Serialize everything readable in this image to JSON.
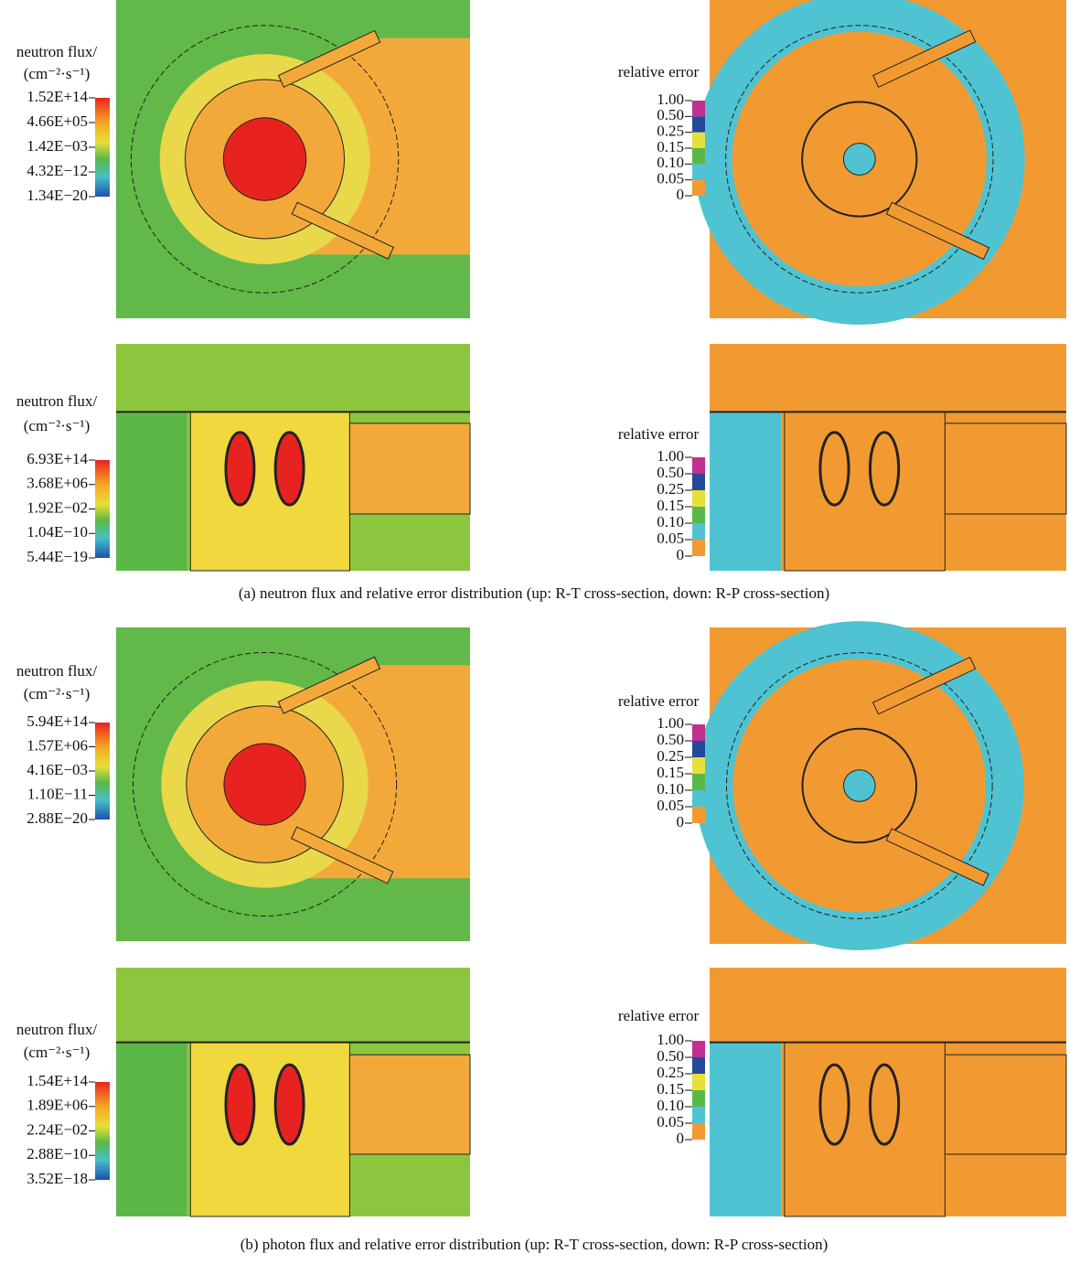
{
  "panels": [
    {
      "title": [
        "neutron flux/",
        "(cm⁻²·s⁻¹)"
      ],
      "labels": [
        "1.52E+14",
        "4.66E+05",
        "1.42E−03",
        "4.32E−12",
        "1.34E−20"
      ]
    },
    {
      "title": [
        "relative error"
      ],
      "labels": [
        "1.00",
        "0.50",
        "0.25",
        "0.15",
        "0.10",
        "0.05",
        "0"
      ]
    },
    {
      "title": [
        "neutron flux/",
        "(cm⁻²·s⁻¹)"
      ],
      "labels": [
        "6.93E+14",
        "3.68E+06",
        "1.92E−02",
        "1.04E−10",
        "5.44E−19"
      ]
    },
    {
      "title": [
        "relative error"
      ],
      "labels": [
        "1.00",
        "0.50",
        "0.25",
        "0.15",
        "0.10",
        "0.05",
        "0"
      ]
    },
    {
      "title": [
        "neutron flux/",
        "(cm⁻²·s⁻¹)"
      ],
      "labels": [
        "5.94E+14",
        "1.57E+06",
        "4.16E−03",
        "1.10E−11",
        "2.88E−20"
      ]
    },
    {
      "title": [
        "relative error"
      ],
      "labels": [
        "1.00",
        "0.50",
        "0.25",
        "0.15",
        "0.10",
        "0.05",
        "0"
      ]
    },
    {
      "title": [
        "neutron flux/",
        "(cm⁻²·s⁻¹)"
      ],
      "labels": [
        "1.54E+14",
        "1.89E+06",
        "2.24E−02",
        "2.88E−10",
        "3.52E−18"
      ]
    },
    {
      "title": [
        "relative error"
      ],
      "labels": [
        "1.00",
        "0.50",
        "0.25",
        "0.15",
        "0.10",
        "0.05",
        "0"
      ]
    }
  ],
  "captions": [
    "(a) neutron flux and relative error distribution (up: R-T cross-section, down: R-P cross-section)",
    "(b) photon flux and relative error distribution (up: R-T cross-section, down: R-P cross-section)"
  ]
}
